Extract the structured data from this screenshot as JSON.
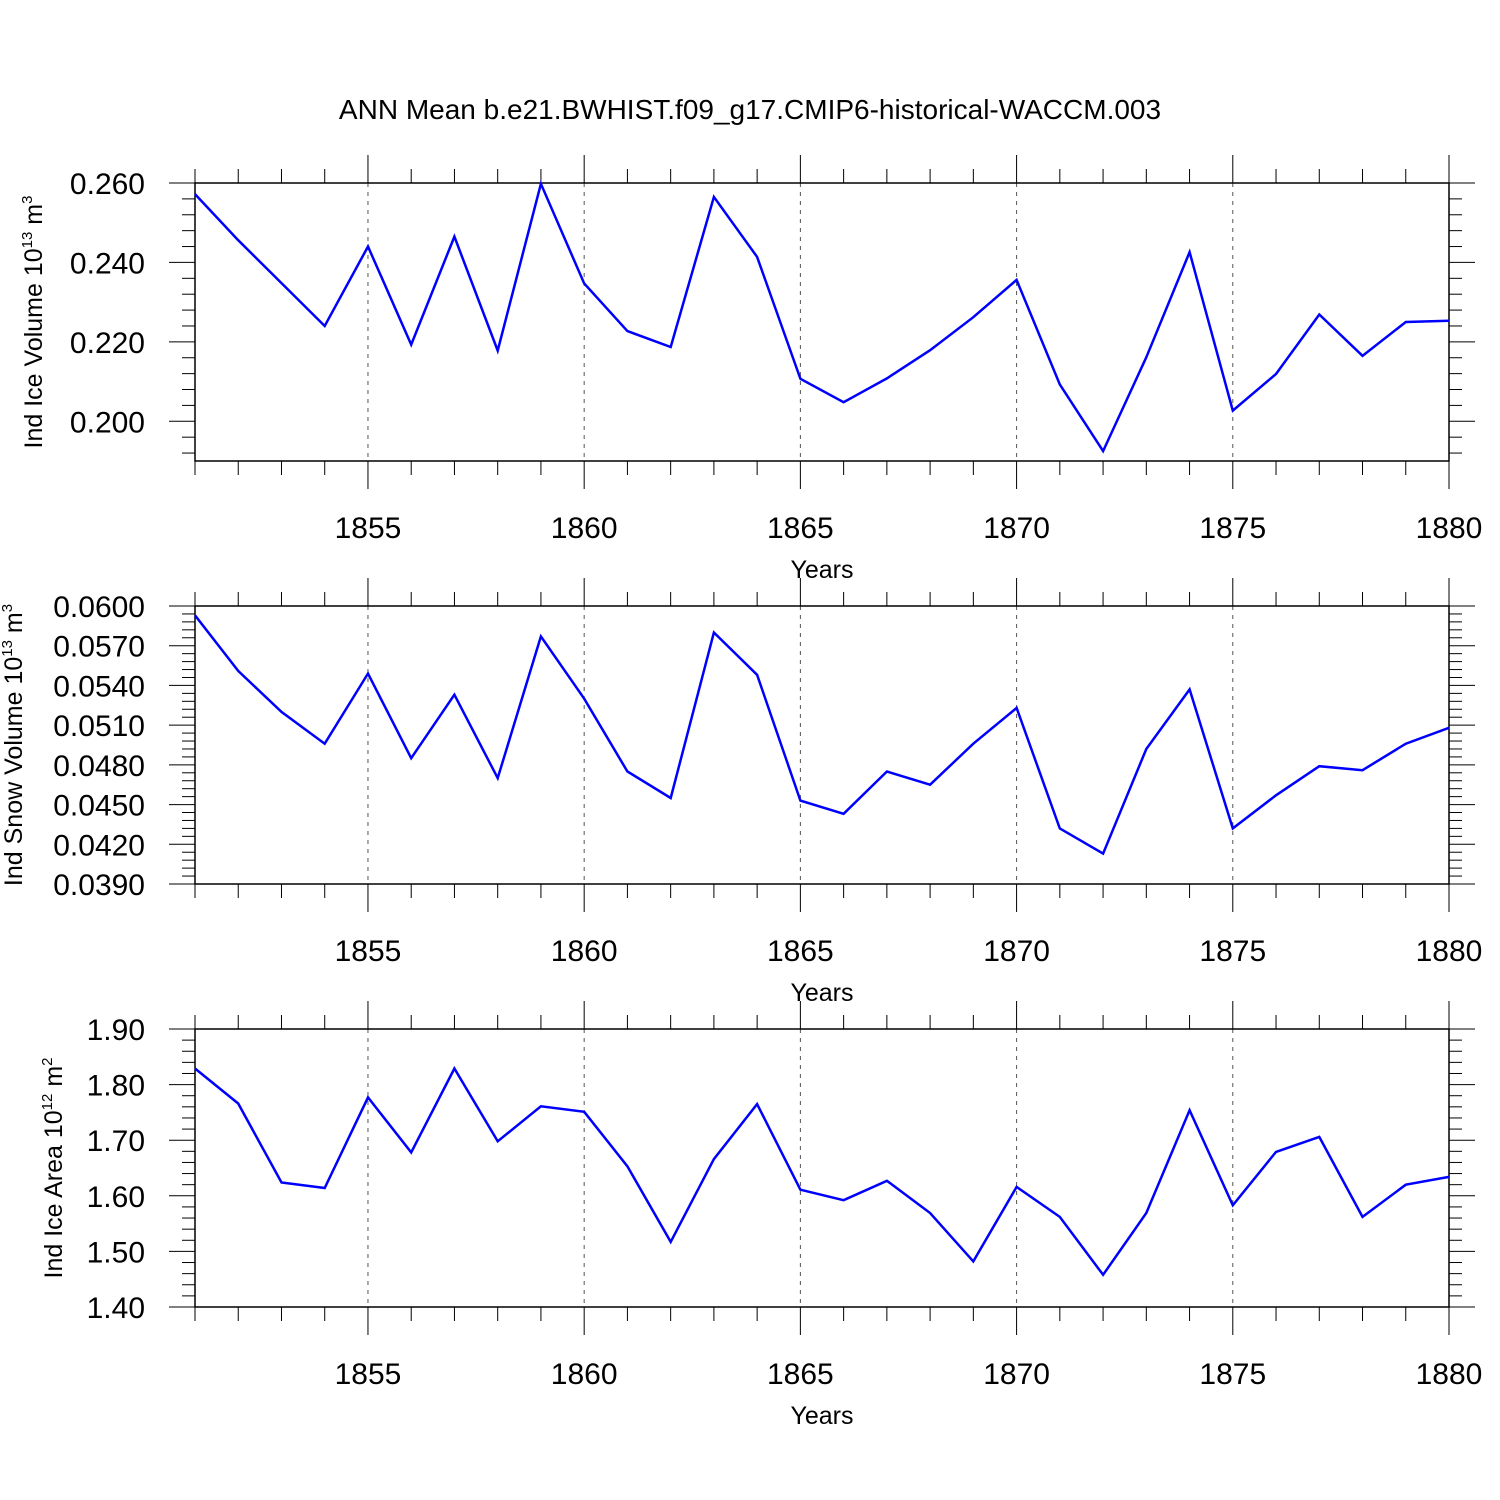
{
  "title": "ANN Mean b.e21.BWHIST.f09_g17.CMIP6-historical-WACCM.003",
  "colors": {
    "line": "#0000ff",
    "axes": "#000000",
    "grid": "#555555"
  },
  "chart_data": [
    {
      "type": "line",
      "ylabel": {
        "main": "Ind Ice Volume 10",
        "sup": "13",
        "unit": " m",
        "unit_sup": "3"
      },
      "xlabel": "Years",
      "xlim": [
        1851,
        1880
      ],
      "ylim": [
        0.19,
        0.26
      ],
      "x_ticks": [
        "1855",
        "1860",
        "1865",
        "1870",
        "1875",
        "1880"
      ],
      "y_ticks": [
        "0.200",
        "0.220",
        "0.240",
        "0.260"
      ],
      "x": [
        1851,
        1852,
        1853,
        1854,
        1855,
        1856,
        1857,
        1858,
        1859,
        1860,
        1861,
        1862,
        1863,
        1864,
        1865,
        1866,
        1867,
        1868,
        1869,
        1870,
        1871,
        1872,
        1873,
        1874,
        1875,
        1876,
        1877,
        1878,
        1879,
        1880
      ],
      "series": [
        {
          "name": "Ind Ice Volume",
          "values": [
            0.2572,
            0.2456,
            0.2348,
            0.224,
            0.244,
            0.2193,
            0.2465,
            0.2178,
            0.2598,
            0.2347,
            0.2227,
            0.2187,
            0.2565,
            0.2414,
            0.2107,
            0.2048,
            0.2108,
            0.2179,
            0.2262,
            0.2356,
            0.2093,
            0.1925,
            0.2161,
            0.2426,
            0.2027,
            0.2119,
            0.2269,
            0.2165,
            0.225,
            0.2253
          ]
        }
      ]
    },
    {
      "type": "line",
      "ylabel": {
        "main": "Ind Snow Volume 10",
        "sup": "13",
        "unit": " m",
        "unit_sup": "3"
      },
      "xlabel": "Years",
      "xlim": [
        1851,
        1880
      ],
      "ylim": [
        0.039,
        0.06
      ],
      "x_ticks": [
        "1855",
        "1860",
        "1865",
        "1870",
        "1875",
        "1880"
      ],
      "y_ticks": [
        "0.0390",
        "0.0420",
        "0.0450",
        "0.0480",
        "0.0510",
        "0.0540",
        "0.0570",
        "0.0600"
      ],
      "x": [
        1851,
        1852,
        1853,
        1854,
        1855,
        1856,
        1857,
        1858,
        1859,
        1860,
        1861,
        1862,
        1863,
        1864,
        1865,
        1866,
        1867,
        1868,
        1869,
        1870,
        1871,
        1872,
        1873,
        1874,
        1875,
        1876,
        1877,
        1878,
        1879,
        1880
      ],
      "series": [
        {
          "name": "Ind Snow Volume",
          "values": [
            0.0593,
            0.0551,
            0.052,
            0.0496,
            0.0549,
            0.0485,
            0.0533,
            0.047,
            0.0577,
            0.053,
            0.0475,
            0.0455,
            0.058,
            0.0548,
            0.0453,
            0.0443,
            0.0475,
            0.0465,
            0.0496,
            0.0523,
            0.0432,
            0.0413,
            0.0492,
            0.0537,
            0.0432,
            0.0457,
            0.0479,
            0.0476,
            0.0496,
            0.0508
          ]
        }
      ]
    },
    {
      "type": "line",
      "ylabel": {
        "main": "Ind Ice Area 10",
        "sup": "12",
        "unit": " m",
        "unit_sup": "2"
      },
      "xlabel": "Years",
      "xlim": [
        1851,
        1880
      ],
      "ylim": [
        1.4,
        1.9
      ],
      "x_ticks": [
        "1855",
        "1860",
        "1865",
        "1870",
        "1875",
        "1880"
      ],
      "y_ticks": [
        "1.40",
        "1.50",
        "1.60",
        "1.70",
        "1.80",
        "1.90"
      ],
      "x": [
        1851,
        1852,
        1853,
        1854,
        1855,
        1856,
        1857,
        1858,
        1859,
        1860,
        1861,
        1862,
        1863,
        1864,
        1865,
        1866,
        1867,
        1868,
        1869,
        1870,
        1871,
        1872,
        1873,
        1874,
        1875,
        1876,
        1877,
        1878,
        1879,
        1880
      ],
      "series": [
        {
          "name": "Ind Ice Area",
          "values": [
            1.829,
            1.766,
            1.624,
            1.614,
            1.777,
            1.678,
            1.829,
            1.698,
            1.761,
            1.751,
            1.653,
            1.517,
            1.666,
            1.765,
            1.611,
            1.592,
            1.627,
            1.569,
            1.482,
            1.616,
            1.562,
            1.458,
            1.569,
            1.754,
            1.583,
            1.679,
            1.706,
            1.562,
            1.62,
            1.634
          ]
        }
      ]
    }
  ]
}
